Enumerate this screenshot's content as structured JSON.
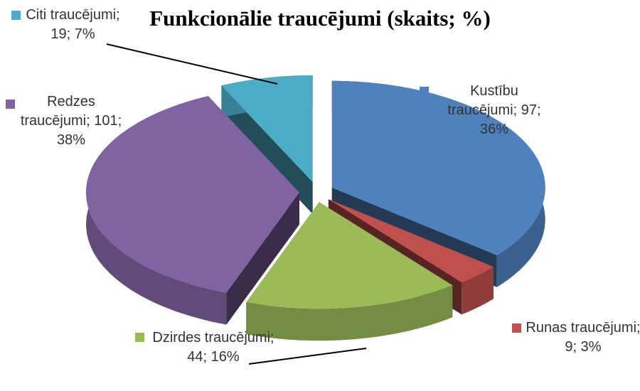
{
  "chart_data": {
    "type": "pie",
    "title": "Funkcionālie traucējumi (skaits; %)",
    "values": [
      97,
      9,
      44,
      101,
      19
    ],
    "value_labels": [
      "Kustību traucējumi; 97; 36%",
      "Runas traucējumi; 9; 3%",
      "Dzirdes traucējumi; 44; 16%",
      "Redzes traucējumi; 101; 38%",
      "Citi traucējumi; 19; 7%"
    ],
    "colors": [
      "#4f81bd",
      "#c0504d",
      "#9bbb59",
      "#8064a2",
      "#4bacc6"
    ]
  }
}
